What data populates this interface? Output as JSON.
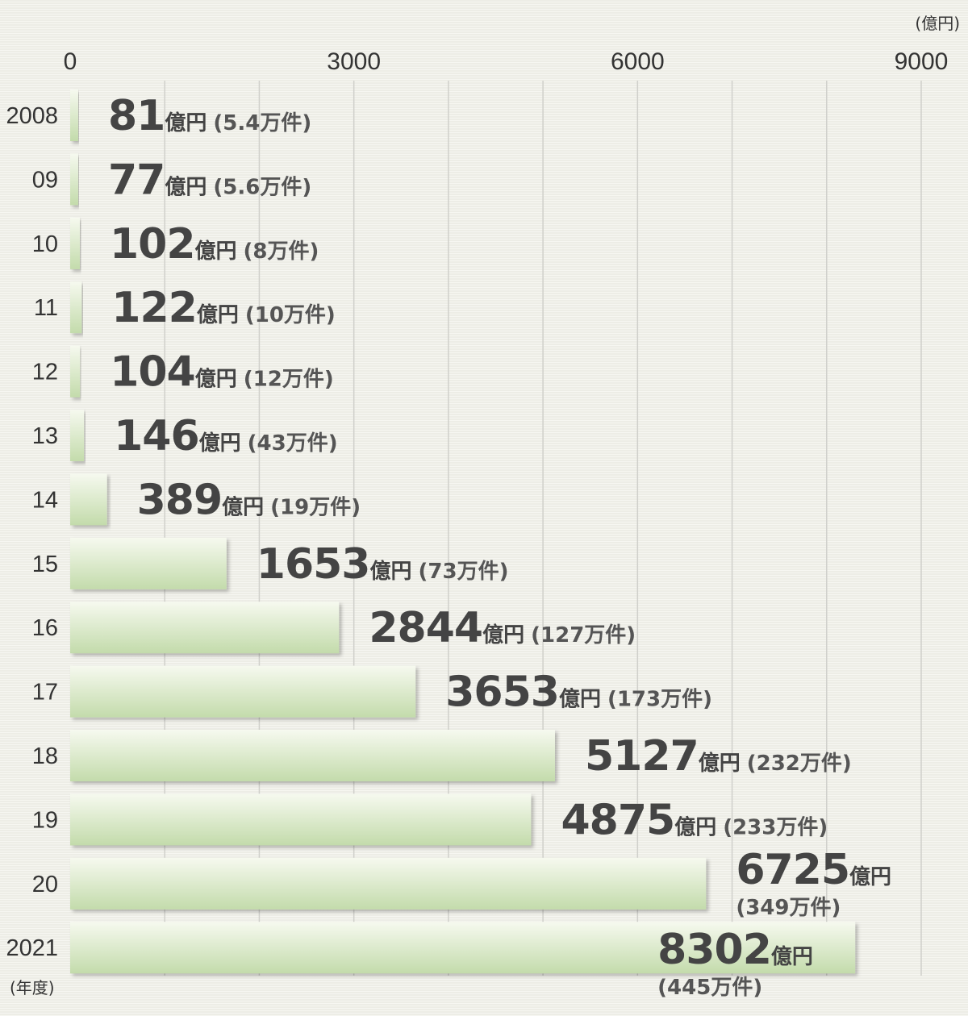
{
  "chart_data": {
    "type": "bar",
    "orientation": "horizontal",
    "unit_label": "(億円)",
    "category_axis_label": "(年度)",
    "xlim": [
      0,
      9000
    ],
    "x_ticks": [
      "0",
      "3000",
      "6000",
      "9000"
    ],
    "grid": true,
    "categories": [
      "2008",
      "09",
      "10",
      "11",
      "12",
      "13",
      "14",
      "15",
      "16",
      "17",
      "18",
      "19",
      "20",
      "2021"
    ],
    "values": [
      81,
      77,
      102,
      122,
      104,
      146,
      389,
      1653,
      2844,
      3653,
      5127,
      4875,
      6725,
      8302
    ],
    "value_unit": "億円",
    "count_labels": [
      "(5.4万件)",
      "(5.6万件)",
      "(8万件)",
      "(10万件)",
      "(12万件)",
      "(43万件)",
      "(19万件)",
      "(73万件)",
      "(127万件)",
      "(173万件)",
      "(232万件)",
      "(233万件)",
      "(349万件)",
      "(445万件)"
    ],
    "colors": {
      "bar_top": "#f4f8ec",
      "bar_bottom": "#c5dcae",
      "grid": "#d0d0cb",
      "text": "#444444"
    }
  }
}
